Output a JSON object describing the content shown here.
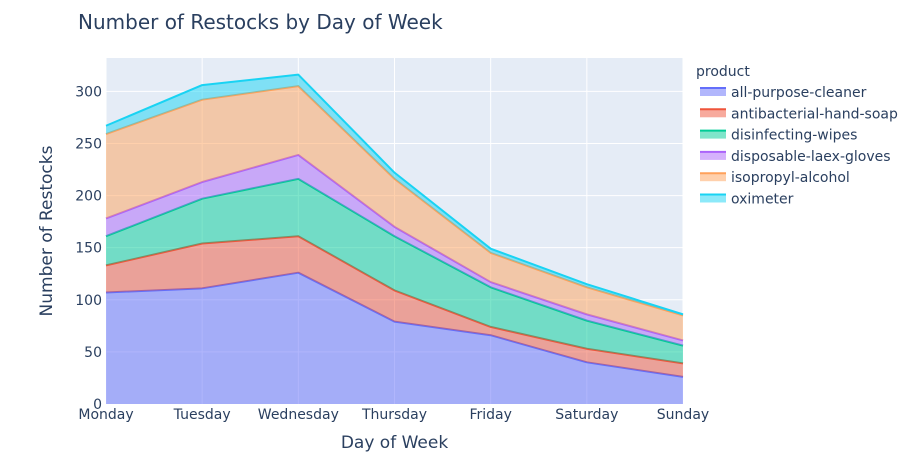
{
  "chart_data": {
    "type": "area",
    "stacked": true,
    "title": "Number of Restocks by Day of Week",
    "xlabel": "Day of Week",
    "ylabel": "Number of Restocks",
    "categories": [
      "Monday",
      "Tuesday",
      "Wednesday",
      "Thursday",
      "Friday",
      "Saturday",
      "Sunday"
    ],
    "ylim": [
      0,
      332
    ],
    "yticks": [
      0,
      50,
      100,
      150,
      200,
      250,
      300
    ],
    "grid": true,
    "legend_title": "product",
    "legend_position": "right",
    "series": [
      {
        "name": "all-purpose-cleaner",
        "color": "#636efa",
        "values": [
          107,
          111,
          126,
          79,
          66,
          40,
          26
        ]
      },
      {
        "name": "antibacterial-hand-soap",
        "color": "#ef553b",
        "values": [
          26,
          43,
          35,
          30,
          8,
          13,
          13
        ]
      },
      {
        "name": "disinfecting-wipes",
        "color": "#00cc96",
        "values": [
          28,
          43,
          55,
          52,
          38,
          27,
          17
        ]
      },
      {
        "name": "disposable-laex-gloves",
        "color": "#ab63fa",
        "values": [
          17,
          16,
          23,
          9,
          5,
          6,
          5
        ]
      },
      {
        "name": "isopropyl-alcohol",
        "color": "#ffa15a",
        "values": [
          81,
          79,
          66,
          46,
          28,
          26,
          24
        ]
      },
      {
        "name": "oximeter",
        "color": "#19d3f3",
        "values": [
          8,
          14,
          11,
          6,
          4,
          3,
          1
        ]
      }
    ]
  }
}
